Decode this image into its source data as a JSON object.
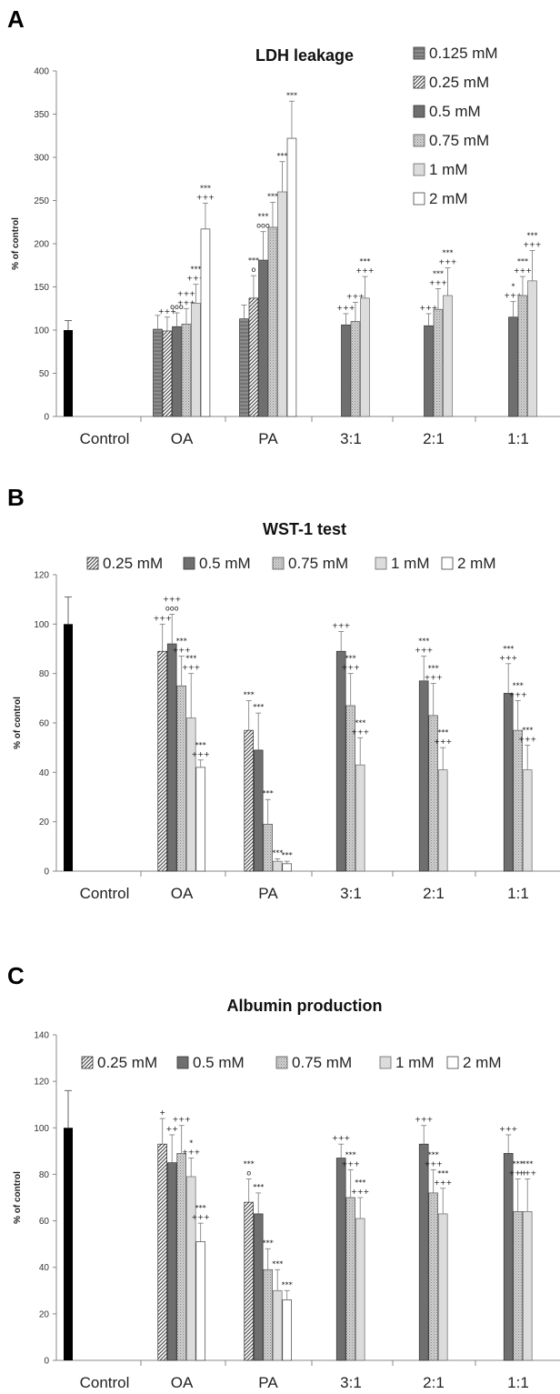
{
  "chart_data": [
    {
      "panel": "A",
      "type": "bar",
      "title": "LDH leakage",
      "ylabel": "% of control",
      "xlabel": "",
      "ylim": [
        0,
        400
      ],
      "yticks": [
        0,
        50,
        100,
        150,
        200,
        250,
        300,
        350,
        400
      ],
      "categories": [
        "Control",
        "OA",
        "PA",
        "3:1",
        "2:1",
        "1:1"
      ],
      "legend": [
        "0.125 mM",
        "0.25 mM",
        "0.5 mM",
        "0.75 mM",
        "1 mM",
        "2 mM"
      ],
      "legend_position": "top-right",
      "control": {
        "value": 100,
        "error": 11
      },
      "groups": [
        {
          "category": "OA",
          "bars": [
            {
              "series": "0.125 mM",
              "value": 101,
              "error": 16,
              "ann": []
            },
            {
              "series": "0.25 mM",
              "value": 99,
              "error": 16,
              "ann": [
                "+++"
              ]
            },
            {
              "series": "0.5 mM",
              "value": 104,
              "error": 16,
              "ann": [
                "ooo"
              ]
            },
            {
              "series": "0.75 mM",
              "value": 107,
              "error": 18,
              "ann": [
                "+++",
                "+++"
              ]
            },
            {
              "series": "1 mM",
              "value": 131,
              "error": 22,
              "ann": [
                "***",
                "+++"
              ]
            },
            {
              "series": "2 mM",
              "value": 217,
              "error": 30,
              "ann": [
                "***",
                "+++"
              ]
            }
          ]
        },
        {
          "category": "PA",
          "bars": [
            {
              "series": "0.125 mM",
              "value": 113,
              "error": 16,
              "ann": []
            },
            {
              "series": "0.25 mM",
              "value": 137,
              "error": 26,
              "ann": [
                "***",
                "o"
              ]
            },
            {
              "series": "0.5 mM",
              "value": 181,
              "error": 33,
              "ann": [
                "***",
                "ooo"
              ]
            },
            {
              "series": "0.75 mM",
              "value": 219,
              "error": 29,
              "ann": [
                "***"
              ]
            },
            {
              "series": "1 mM",
              "value": 260,
              "error": 35,
              "ann": [
                "***"
              ]
            },
            {
              "series": "2 mM",
              "value": 322,
              "error": 43,
              "ann": [
                "***"
              ]
            }
          ]
        },
        {
          "category": "3:1",
          "bars": [
            {
              "series": "0.5 mM",
              "value": 106,
              "error": 13,
              "ann": [
                "+++"
              ]
            },
            {
              "series": "0.75 mM",
              "value": 110,
              "error": 22,
              "ann": [
                "+++"
              ]
            },
            {
              "series": "1 mM",
              "value": 137,
              "error": 25,
              "ann": [
                "***",
                "+++"
              ]
            }
          ]
        },
        {
          "category": "2:1",
          "bars": [
            {
              "series": "0.5 mM",
              "value": 105,
              "error": 14,
              "ann": [
                "+++"
              ]
            },
            {
              "series": "0.75 mM",
              "value": 124,
              "error": 24,
              "ann": [
                "***",
                "+++"
              ]
            },
            {
              "series": "1 mM",
              "value": 140,
              "error": 32,
              "ann": [
                "***",
                "+++"
              ]
            }
          ]
        },
        {
          "category": "1:1",
          "bars": [
            {
              "series": "0.5 mM",
              "value": 115,
              "error": 18,
              "ann": [
                "*",
                "+++"
              ]
            },
            {
              "series": "0.75 mM",
              "value": 140,
              "error": 22,
              "ann": [
                "***",
                "+++"
              ]
            },
            {
              "series": "1 mM",
              "value": 157,
              "error": 35,
              "ann": [
                "***",
                "+++"
              ]
            }
          ]
        }
      ]
    },
    {
      "panel": "B",
      "type": "bar",
      "title": "WST-1 test",
      "ylabel": "% of control",
      "xlabel": "",
      "ylim": [
        0,
        120
      ],
      "yticks": [
        0,
        20,
        40,
        60,
        80,
        100,
        120
      ],
      "categories": [
        "Control",
        "OA",
        "PA",
        "3:1",
        "2:1",
        "1:1"
      ],
      "legend": [
        "0.25 mM",
        "0.5 mM",
        "0.75 mM",
        "1 mM",
        "2 mM"
      ],
      "legend_position": "top",
      "control": {
        "value": 100,
        "error": 11
      },
      "groups": [
        {
          "category": "OA",
          "bars": [
            {
              "series": "0.25 mM",
              "value": 89,
              "error": 11,
              "ann": [
                "+++"
              ]
            },
            {
              "series": "0.5 mM",
              "value": 92,
              "error": 12,
              "ann": [
                "+++",
                "ooo"
              ]
            },
            {
              "series": "0.75 mM",
              "value": 75,
              "error": 12,
              "ann": [
                "***",
                "+++"
              ]
            },
            {
              "series": "1 mM",
              "value": 62,
              "error": 18,
              "ann": [
                "***",
                "+++"
              ]
            },
            {
              "series": "2 mM",
              "value": 42,
              "error": 3,
              "ann": [
                "***",
                "+++"
              ]
            }
          ]
        },
        {
          "category": "PA",
          "bars": [
            {
              "series": "0.25 mM",
              "value": 57,
              "error": 12,
              "ann": [
                "***"
              ]
            },
            {
              "series": "0.5 mM",
              "value": 49,
              "error": 15,
              "ann": [
                "***"
              ]
            },
            {
              "series": "0.75 mM",
              "value": 19,
              "error": 10,
              "ann": [
                "***"
              ]
            },
            {
              "series": "1 mM",
              "value": 4,
              "error": 1,
              "ann": [
                "***"
              ]
            },
            {
              "series": "2 mM",
              "value": 3,
              "error": 1,
              "ann": [
                "***"
              ]
            }
          ]
        },
        {
          "category": "3:1",
          "bars": [
            {
              "series": "0.5 mM",
              "value": 89,
              "error": 8,
              "ann": [
                "+++"
              ]
            },
            {
              "series": "0.75 mM",
              "value": 67,
              "error": 13,
              "ann": [
                "***",
                "+++"
              ]
            },
            {
              "series": "1 mM",
              "value": 43,
              "error": 11,
              "ann": [
                "***",
                "+++"
              ]
            }
          ]
        },
        {
          "category": "2:1",
          "bars": [
            {
              "series": "0.5 mM",
              "value": 77,
              "error": 10,
              "ann": [
                "***",
                "+++"
              ]
            },
            {
              "series": "0.75 mM",
              "value": 63,
              "error": 13,
              "ann": [
                "***",
                "+++"
              ]
            },
            {
              "series": "1 mM",
              "value": 41,
              "error": 9,
              "ann": [
                "***",
                "+++"
              ]
            }
          ]
        },
        {
          "category": "1:1",
          "bars": [
            {
              "series": "0.5 mM",
              "value": 72,
              "error": 12,
              "ann": [
                "***",
                "+++"
              ]
            },
            {
              "series": "0.75 mM",
              "value": 57,
              "error": 12,
              "ann": [
                "***",
                "+++"
              ]
            },
            {
              "series": "1 mM",
              "value": 41,
              "error": 10,
              "ann": [
                "***",
                "+++"
              ]
            }
          ]
        }
      ]
    },
    {
      "panel": "C",
      "type": "bar",
      "title": "Albumin production",
      "ylabel": "% of control",
      "xlabel": "",
      "ylim": [
        0,
        140
      ],
      "yticks": [
        0,
        20,
        40,
        60,
        80,
        100,
        120,
        140
      ],
      "categories": [
        "Control",
        "OA",
        "PA",
        "3:1",
        "2:1",
        "1:1"
      ],
      "legend": [
        "0.25 mM",
        "0.5 mM",
        "0.75 mM",
        "1 mM",
        "2 mM"
      ],
      "legend_position": "top",
      "control": {
        "value": 100,
        "error": 16
      },
      "groups": [
        {
          "category": "OA",
          "bars": [
            {
              "series": "0.25 mM",
              "value": 93,
              "error": 11,
              "ann": [
                "+"
              ]
            },
            {
              "series": "0.5 mM",
              "value": 85,
              "error": 12,
              "ann": [
                "++"
              ]
            },
            {
              "series": "0.75 mM",
              "value": 89,
              "error": 12,
              "ann": [
                "+++"
              ]
            },
            {
              "series": "1 mM",
              "value": 79,
              "error": 8,
              "ann": [
                "*",
                "+++"
              ]
            },
            {
              "series": "2 mM",
              "value": 51,
              "error": 8,
              "ann": [
                "***",
                "+++"
              ]
            }
          ]
        },
        {
          "category": "PA",
          "bars": [
            {
              "series": "0.25 mM",
              "value": 68,
              "error": 10,
              "ann": [
                "***",
                "o"
              ]
            },
            {
              "series": "0.5 mM",
              "value": 63,
              "error": 9,
              "ann": [
                "***"
              ]
            },
            {
              "series": "0.75 mM",
              "value": 39,
              "error": 9,
              "ann": [
                "***"
              ]
            },
            {
              "series": "1 mM",
              "value": 30,
              "error": 9,
              "ann": [
                "***"
              ]
            },
            {
              "series": "2 mM",
              "value": 26,
              "error": 4,
              "ann": [
                "***"
              ]
            }
          ]
        },
        {
          "category": "3:1",
          "bars": [
            {
              "series": "0.5 mM",
              "value": 87,
              "error": 6,
              "ann": [
                "+++"
              ]
            },
            {
              "series": "0.75 mM",
              "value": 70,
              "error": 12,
              "ann": [
                "***",
                "+++"
              ]
            },
            {
              "series": "1 mM",
              "value": 61,
              "error": 9,
              "ann": [
                "***",
                "+++"
              ]
            }
          ]
        },
        {
          "category": "2:1",
          "bars": [
            {
              "series": "0.5 mM",
              "value": 93,
              "error": 8,
              "ann": [
                "+++"
              ]
            },
            {
              "series": "0.75 mM",
              "value": 72,
              "error": 10,
              "ann": [
                "***",
                "+++"
              ]
            },
            {
              "series": "1 mM",
              "value": 63,
              "error": 11,
              "ann": [
                "***",
                "+++"
              ]
            }
          ]
        },
        {
          "category": "1:1",
          "bars": [
            {
              "series": "0.5 mM",
              "value": 89,
              "error": 8,
              "ann": [
                "+++"
              ]
            },
            {
              "series": "0.75 mM",
              "value": 64,
              "error": 14,
              "ann": [
                "***",
                "+++"
              ]
            },
            {
              "series": "1 mM",
              "value": 64,
              "error": 14,
              "ann": [
                "***",
                "+++"
              ]
            }
          ]
        }
      ]
    }
  ]
}
